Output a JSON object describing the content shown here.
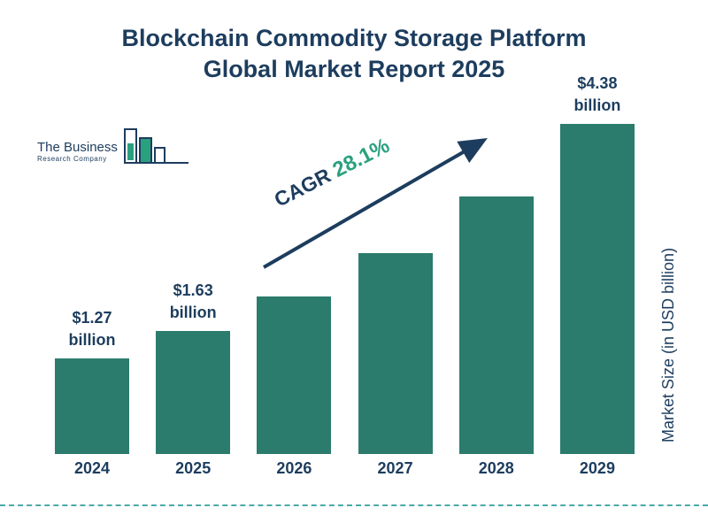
{
  "header": {
    "title_line1": "Blockchain Commodity Storage Platform",
    "title_line2": "Global Market Report 2025"
  },
  "logo": {
    "name_line1": "The Business",
    "name_line2": "Research Company"
  },
  "annotation": {
    "cagr_label": "CAGR",
    "cagr_value": "28.1%"
  },
  "y_axis_label": "Market Size (in USD billion)",
  "colors": {
    "bar": "#2b7c6c",
    "title_navy": "#1d3d5e",
    "accent_green": "#2aa17e",
    "dashed_teal": "#4aaaa6"
  },
  "chart_data": {
    "type": "bar",
    "title": "Blockchain Commodity Storage Platform Global Market Report 2025",
    "categories": [
      "2024",
      "2025",
      "2026",
      "2027",
      "2028",
      "2029"
    ],
    "values": [
      1.27,
      1.63,
      2.09,
      2.67,
      3.42,
      4.38
    ],
    "bar_labels": [
      "$1.27 billion",
      "$1.63 billion",
      "",
      "",
      "",
      "$4.38 billion"
    ],
    "xlabel": "",
    "ylabel": "Market Size (in USD billion)",
    "ylim": [
      0,
      4.38
    ],
    "grid": false,
    "legend": "none",
    "annotation": "CAGR 28.1%"
  }
}
